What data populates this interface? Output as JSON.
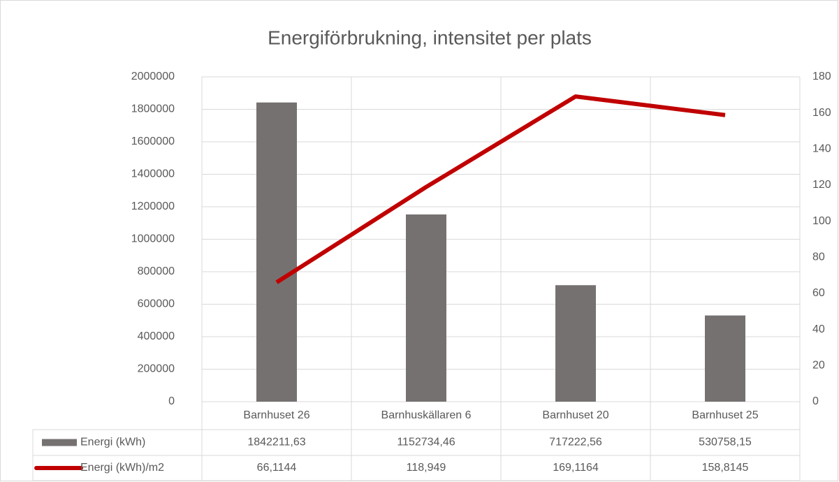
{
  "chart_data": {
    "type": "bar",
    "title": "Energiförbrukning, intensitet per plats",
    "categories": [
      "Barnhuset 26",
      "Barnhuskällaren 6",
      "Barnhuset 20",
      "Barnhuset 25"
    ],
    "series": [
      {
        "name": "Energi (kWh)",
        "color": "#767171",
        "type": "bar",
        "values": [
          1842211.63,
          1152734.46,
          717222.56,
          530758.15
        ],
        "value_labels": [
          "1842211,63",
          "1152734,46",
          "717222,56",
          "530758,15"
        ]
      },
      {
        "name": "Energi (kWh)/m2",
        "color": "#c00000",
        "type": "line",
        "axis": "y2",
        "values": [
          66.1144,
          118.949,
          169.1164,
          158.8145
        ],
        "value_labels": [
          "66,1144",
          "118,949",
          "169,1164",
          "158,8145"
        ]
      }
    ],
    "ylim": [
      0,
      2000000
    ],
    "yticks": [
      0,
      200000,
      400000,
      600000,
      800000,
      1000000,
      1200000,
      1400000,
      1600000,
      1800000,
      2000000
    ],
    "y2lim": [
      0,
      180
    ],
    "y2ticks": [
      0,
      20,
      40,
      60,
      80,
      100,
      120,
      140,
      160,
      180
    ],
    "grid": true
  }
}
